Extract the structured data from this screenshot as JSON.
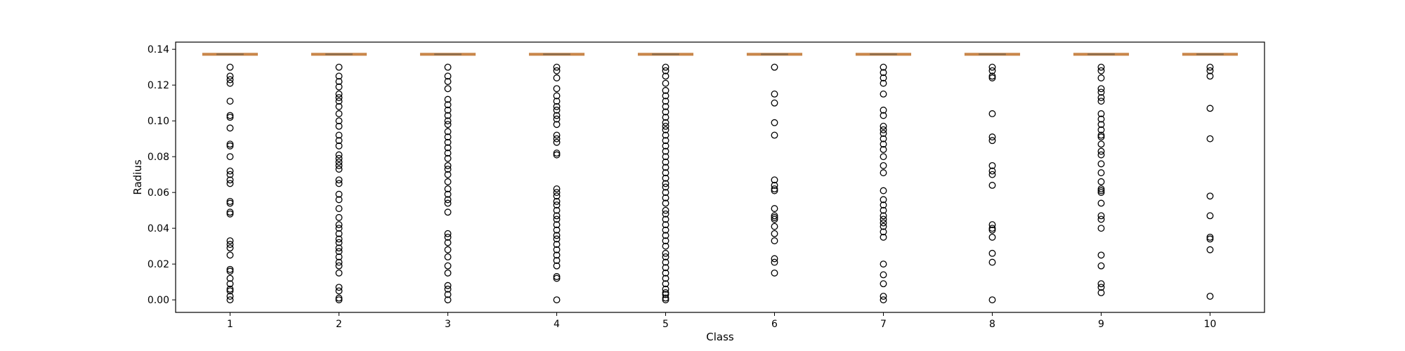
{
  "chart_data": {
    "type": "box",
    "title": "",
    "xlabel": "Class",
    "ylabel": "Radius",
    "ylim": [
      -0.007,
      0.144
    ],
    "yticks": [
      0.0,
      0.02,
      0.04,
      0.06,
      0.08,
      0.1,
      0.12,
      0.14
    ],
    "ytick_labels": [
      "0.00",
      "0.02",
      "0.04",
      "0.06",
      "0.08",
      "0.10",
      "0.12",
      "0.14"
    ],
    "categories": [
      "1",
      "2",
      "3",
      "4",
      "5",
      "6",
      "7",
      "8",
      "9",
      "10"
    ],
    "grid": false,
    "box_color": "#c8864a",
    "flier_color": "#000000",
    "boxes": [
      {
        "category": "1",
        "q1": 0.1372,
        "median": 0.1372,
        "q3": 0.1372,
        "whisker_low": 0.1372,
        "whisker_high": 0.1372,
        "fliers": [
          0.13,
          0.125,
          0.123,
          0.121,
          0.111,
          0.103,
          0.102,
          0.096,
          0.087,
          0.086,
          0.08,
          0.072,
          0.07,
          0.067,
          0.065,
          0.055,
          0.054,
          0.049,
          0.048,
          0.033,
          0.031,
          0.029,
          0.025,
          0.017,
          0.016,
          0.012,
          0.009,
          0.006,
          0.005,
          0.002,
          0.0
        ]
      },
      {
        "category": "2",
        "q1": 0.1372,
        "median": 0.1372,
        "q3": 0.1372,
        "whisker_low": 0.1372,
        "whisker_high": 0.1372,
        "fliers": [
          0.13,
          0.125,
          0.122,
          0.119,
          0.115,
          0.113,
          0.111,
          0.108,
          0.104,
          0.1,
          0.097,
          0.092,
          0.089,
          0.086,
          0.081,
          0.079,
          0.077,
          0.075,
          0.073,
          0.067,
          0.065,
          0.059,
          0.056,
          0.051,
          0.046,
          0.042,
          0.04,
          0.037,
          0.034,
          0.032,
          0.029,
          0.027,
          0.024,
          0.021,
          0.019,
          0.015,
          0.007,
          0.005,
          0.001,
          0.0
        ]
      },
      {
        "category": "3",
        "q1": 0.1372,
        "median": 0.1372,
        "q3": 0.1372,
        "whisker_low": 0.1372,
        "whisker_high": 0.1372,
        "fliers": [
          0.13,
          0.125,
          0.122,
          0.118,
          0.112,
          0.109,
          0.106,
          0.103,
          0.1,
          0.098,
          0.094,
          0.091,
          0.088,
          0.085,
          0.082,
          0.079,
          0.075,
          0.073,
          0.07,
          0.066,
          0.062,
          0.059,
          0.056,
          0.054,
          0.049,
          0.037,
          0.035,
          0.032,
          0.028,
          0.024,
          0.019,
          0.015,
          0.008,
          0.006,
          0.003,
          0.0
        ]
      },
      {
        "category": "4",
        "q1": 0.1372,
        "median": 0.1372,
        "q3": 0.1372,
        "whisker_low": 0.1372,
        "whisker_high": 0.1372,
        "fliers": [
          0.13,
          0.128,
          0.124,
          0.118,
          0.114,
          0.111,
          0.108,
          0.106,
          0.103,
          0.101,
          0.098,
          0.092,
          0.09,
          0.088,
          0.082,
          0.081,
          0.062,
          0.06,
          0.058,
          0.055,
          0.053,
          0.05,
          0.047,
          0.045,
          0.042,
          0.039,
          0.036,
          0.034,
          0.031,
          0.028,
          0.025,
          0.022,
          0.019,
          0.013,
          0.012,
          0.0
        ]
      },
      {
        "category": "5",
        "q1": 0.1372,
        "median": 0.1372,
        "q3": 0.1372,
        "whisker_low": 0.1372,
        "whisker_high": 0.1372,
        "fliers": [
          0.13,
          0.128,
          0.125,
          0.121,
          0.117,
          0.114,
          0.111,
          0.108,
          0.105,
          0.102,
          0.099,
          0.097,
          0.095,
          0.092,
          0.089,
          0.086,
          0.083,
          0.08,
          0.077,
          0.074,
          0.071,
          0.068,
          0.065,
          0.063,
          0.06,
          0.057,
          0.054,
          0.05,
          0.048,
          0.045,
          0.042,
          0.039,
          0.036,
          0.033,
          0.03,
          0.026,
          0.024,
          0.021,
          0.018,
          0.015,
          0.012,
          0.009,
          0.006,
          0.004,
          0.003,
          0.001,
          0.0
        ]
      },
      {
        "category": "6",
        "q1": 0.1372,
        "median": 0.1372,
        "q3": 0.1372,
        "whisker_low": 0.1372,
        "whisker_high": 0.1372,
        "fliers": [
          0.13,
          0.115,
          0.11,
          0.099,
          0.092,
          0.067,
          0.064,
          0.062,
          0.061,
          0.051,
          0.047,
          0.046,
          0.045,
          0.041,
          0.037,
          0.033,
          0.023,
          0.021,
          0.015
        ]
      },
      {
        "category": "7",
        "q1": 0.1372,
        "median": 0.1372,
        "q3": 0.1372,
        "whisker_low": 0.1372,
        "whisker_high": 0.1372,
        "fliers": [
          0.13,
          0.127,
          0.124,
          0.121,
          0.115,
          0.106,
          0.103,
          0.097,
          0.095,
          0.093,
          0.09,
          0.087,
          0.084,
          0.08,
          0.075,
          0.071,
          0.061,
          0.056,
          0.053,
          0.05,
          0.047,
          0.045,
          0.043,
          0.041,
          0.038,
          0.035,
          0.02,
          0.014,
          0.009,
          0.002,
          0.0
        ]
      },
      {
        "category": "8",
        "q1": 0.1372,
        "median": 0.1372,
        "q3": 0.1372,
        "whisker_low": 0.1372,
        "whisker_high": 0.1372,
        "fliers": [
          0.13,
          0.128,
          0.125,
          0.124,
          0.104,
          0.091,
          0.089,
          0.075,
          0.072,
          0.07,
          0.064,
          0.042,
          0.04,
          0.039,
          0.035,
          0.026,
          0.021,
          0.0
        ]
      },
      {
        "category": "9",
        "q1": 0.1372,
        "median": 0.1372,
        "q3": 0.1372,
        "whisker_low": 0.1372,
        "whisker_high": 0.1372,
        "fliers": [
          0.13,
          0.128,
          0.124,
          0.118,
          0.116,
          0.113,
          0.111,
          0.104,
          0.101,
          0.098,
          0.095,
          0.092,
          0.091,
          0.087,
          0.083,
          0.081,
          0.076,
          0.071,
          0.066,
          0.062,
          0.061,
          0.06,
          0.054,
          0.047,
          0.045,
          0.04,
          0.025,
          0.019,
          0.009,
          0.007,
          0.004
        ]
      },
      {
        "category": "10",
        "q1": 0.1372,
        "median": 0.1372,
        "q3": 0.1372,
        "whisker_low": 0.1372,
        "whisker_high": 0.1372,
        "fliers": [
          0.13,
          0.128,
          0.125,
          0.107,
          0.09,
          0.058,
          0.047,
          0.035,
          0.034,
          0.028,
          0.002
        ]
      }
    ]
  }
}
